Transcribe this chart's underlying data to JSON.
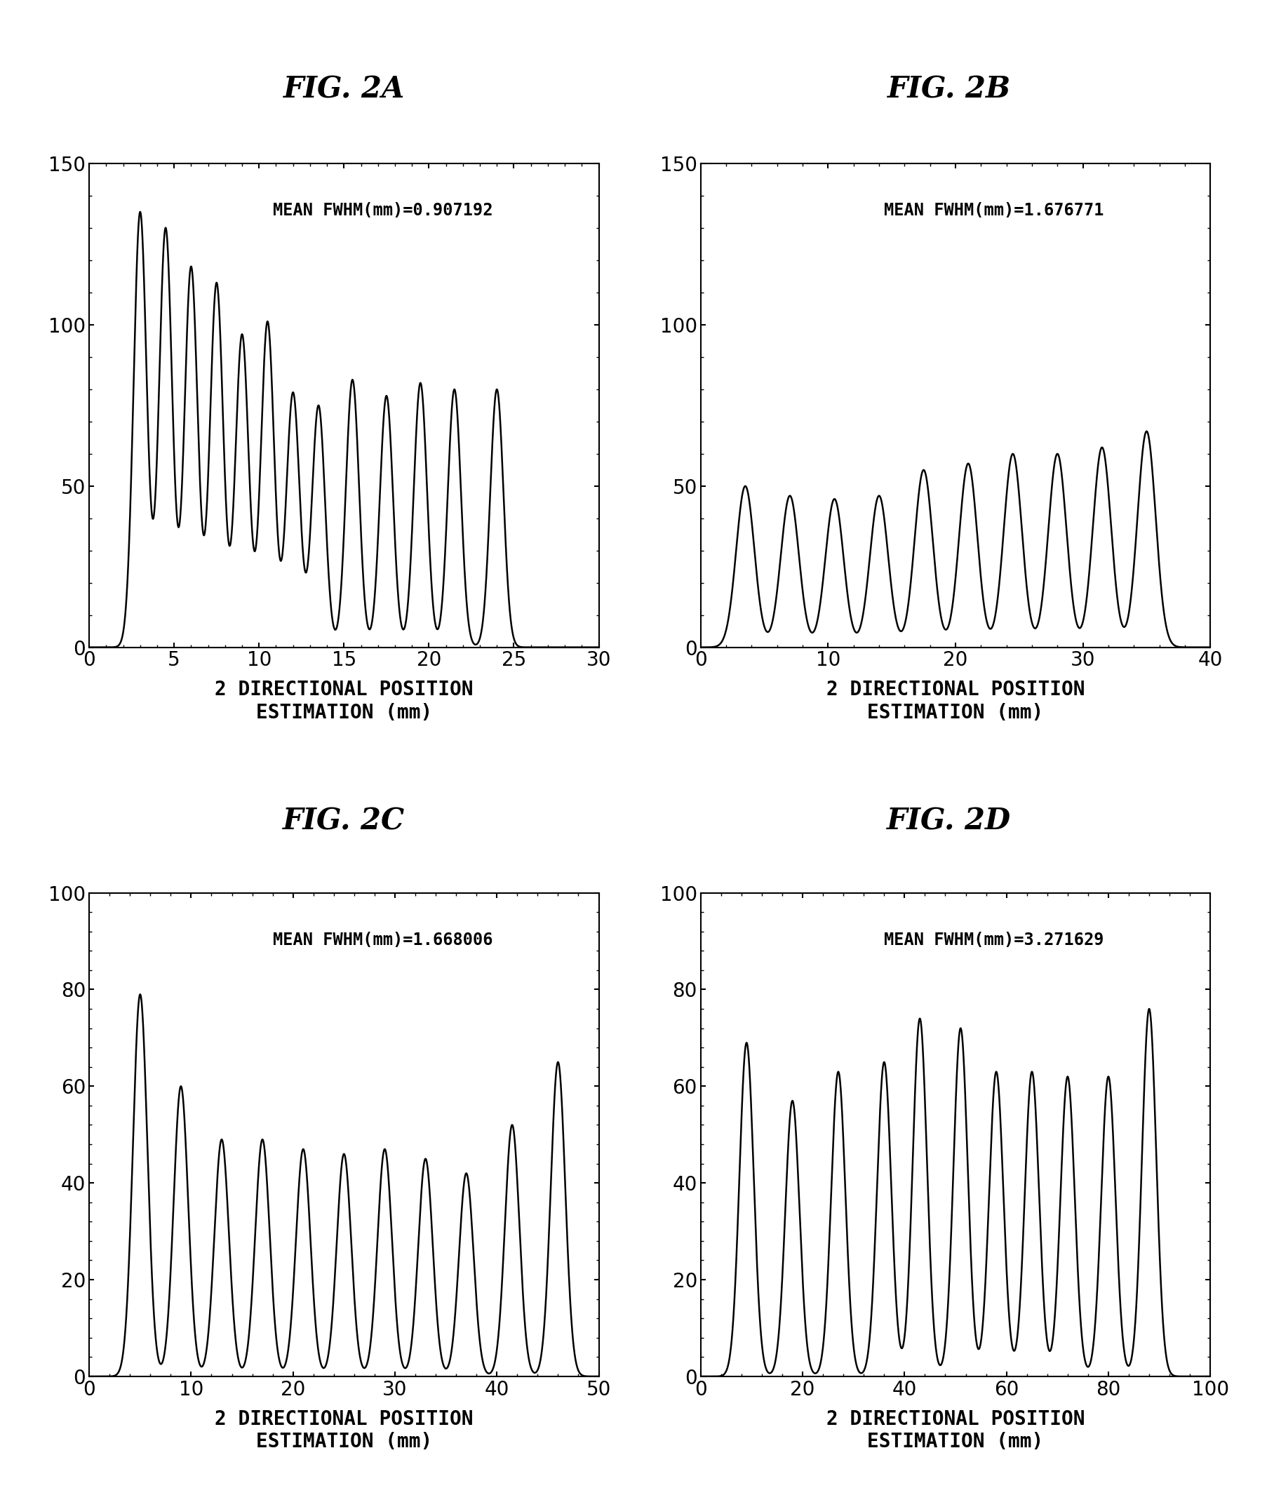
{
  "panels": [
    {
      "title": "FIG. 2A",
      "annotation": "MEAN FWHM(mm)=0.907192",
      "xlim": [
        0,
        30
      ],
      "ylim": [
        0,
        150
      ],
      "xticks": [
        0,
        5,
        10,
        15,
        20,
        25,
        30
      ],
      "yticks": [
        0,
        50,
        100,
        150
      ],
      "peak_positions": [
        3.0,
        4.5,
        6.0,
        7.5,
        9.0,
        10.5,
        12.0,
        13.5,
        15.5,
        17.5,
        19.5,
        21.5,
        24.0
      ],
      "peak_heights": [
        135,
        130,
        118,
        113,
        97,
        101,
        79,
        75,
        83,
        78,
        82,
        80,
        80
      ],
      "fwhm": 0.907192
    },
    {
      "title": "FIG. 2B",
      "annotation": "MEAN FWHM(mm)=1.676771",
      "xlim": [
        0,
        40
      ],
      "ylim": [
        0,
        150
      ],
      "xticks": [
        0,
        10,
        20,
        30,
        40
      ],
      "yticks": [
        0,
        50,
        100,
        150
      ],
      "peak_positions": [
        3.5,
        7.0,
        10.5,
        14.0,
        17.5,
        21.0,
        24.5,
        28.0,
        31.5,
        35.0
      ],
      "peak_heights": [
        50,
        47,
        46,
        47,
        55,
        57,
        60,
        60,
        62,
        67
      ],
      "fwhm": 1.676771
    },
    {
      "title": "FIG. 2C",
      "annotation": "MEAN FWHM(mm)=1.668006",
      "xlim": [
        0,
        50
      ],
      "ylim": [
        0,
        100
      ],
      "xticks": [
        0,
        10,
        20,
        30,
        40,
        50
      ],
      "yticks": [
        0,
        20,
        40,
        60,
        80,
        100
      ],
      "peak_positions": [
        5.0,
        9.0,
        13.0,
        17.0,
        21.0,
        25.0,
        29.0,
        33.0,
        37.0,
        41.5,
        46.0
      ],
      "peak_heights": [
        79,
        60,
        49,
        49,
        47,
        46,
        47,
        45,
        42,
        52,
        65
      ],
      "fwhm": 1.668006
    },
    {
      "title": "FIG. 2D",
      "annotation": "MEAN FWHM(mm)=3.271629",
      "xlim": [
        0,
        100
      ],
      "ylim": [
        0,
        100
      ],
      "xticks": [
        0,
        20,
        40,
        60,
        80,
        100
      ],
      "yticks": [
        0,
        20,
        40,
        60,
        80,
        100
      ],
      "peak_positions": [
        9.0,
        18.0,
        27.0,
        36.0,
        43.0,
        51.0,
        58.0,
        65.0,
        72.0,
        80.0,
        88.0
      ],
      "peak_heights": [
        69,
        57,
        63,
        65,
        74,
        72,
        63,
        63,
        62,
        62,
        76
      ],
      "fwhm": 3.271629
    }
  ],
  "xlabel_line1": "2 DIRECTIONAL POSITION",
  "xlabel_line2": "ESTIMATION (mm)",
  "line_color": "#000000",
  "bg_color": "#ffffff",
  "title_fontsize": 30,
  "annotation_fontsize": 17,
  "tick_fontsize": 20,
  "xlabel_fontsize": 20
}
